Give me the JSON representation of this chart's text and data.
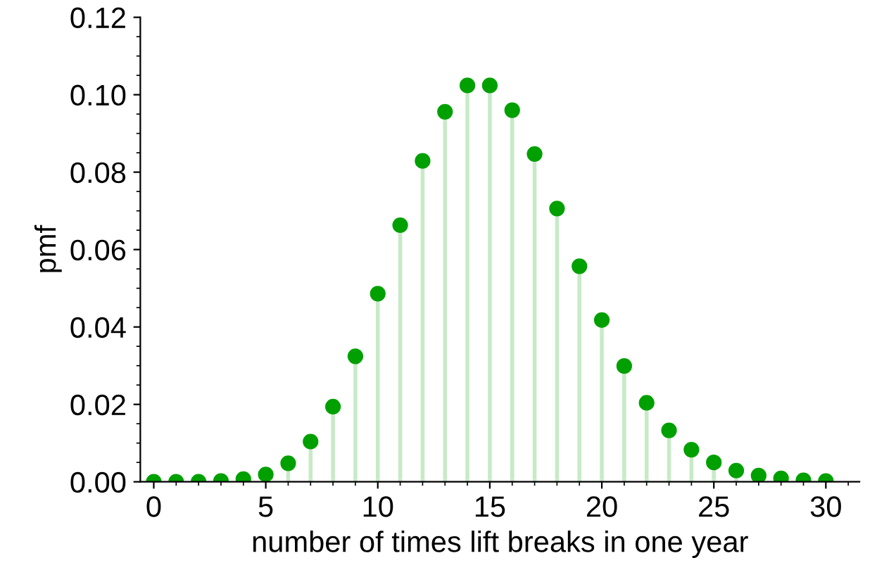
{
  "chart_data": {
    "type": "lollipop",
    "xlabel": "number of times lift breaks in one year",
    "ylabel": "pmf",
    "x": [
      0,
      1,
      2,
      3,
      4,
      5,
      6,
      7,
      8,
      9,
      10,
      11,
      12,
      13,
      14,
      15,
      16,
      17,
      18,
      19,
      20,
      21,
      22,
      23,
      24,
      25,
      26,
      27,
      28,
      29,
      30
    ],
    "series": [
      {
        "color": "#00a000",
        "values": [
          0.0,
          0.0,
          0.0,
          0.0002,
          0.0007,
          0.0019,
          0.0048,
          0.0104,
          0.0194,
          0.0324,
          0.0486,
          0.0663,
          0.0829,
          0.0956,
          0.1024,
          0.1024,
          0.096,
          0.0847,
          0.0706,
          0.0557,
          0.0418,
          0.0299,
          0.0204,
          0.0133,
          0.0083,
          0.005,
          0.0029,
          0.0016,
          0.0009,
          0.0004,
          0.0002
        ]
      }
    ],
    "xlim": [
      -0.6,
      31.5
    ],
    "ylim": [
      0,
      0.12
    ],
    "xticks": [
      0,
      5,
      10,
      15,
      20,
      25,
      30
    ],
    "yticks": [
      {
        "value": 0,
        "label": "0.00"
      },
      {
        "value": 0.02,
        "label": "0.02"
      },
      {
        "value": 0.04,
        "label": "0.04"
      },
      {
        "value": 0.06,
        "label": "0.06"
      },
      {
        "value": 0.08,
        "label": "0.08"
      },
      {
        "value": 0.1,
        "label": "0.10"
      },
      {
        "value": 0.12,
        "label": "0.12"
      }
    ],
    "marker": "circle",
    "grid": false
  }
}
